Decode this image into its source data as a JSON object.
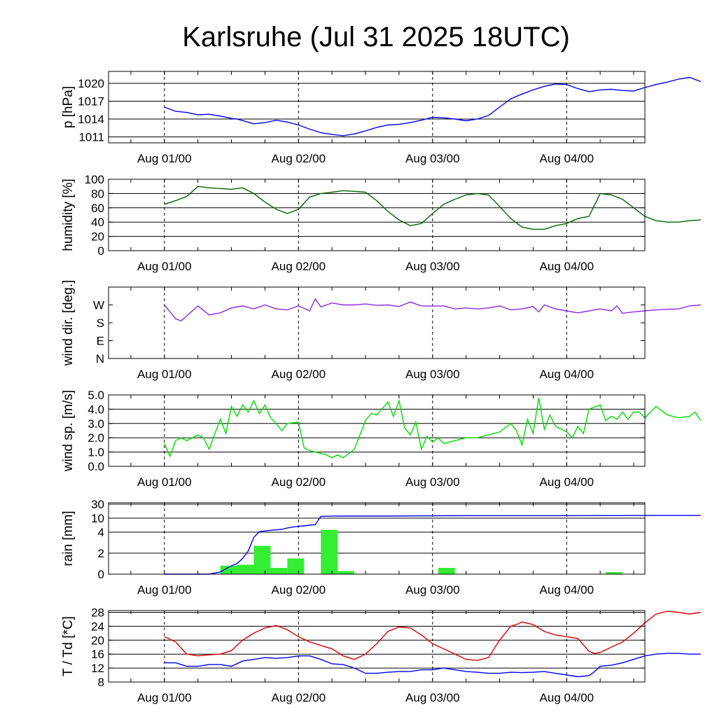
{
  "title": "Karlsruhe (Jul 31 2025 18UTC)",
  "x_ticks": [
    "Aug 01/00",
    "Aug 02/00",
    "Aug 03/00",
    "Aug 04/00"
  ],
  "x_range_hours_note": "",
  "chart_data": [
    {
      "type": "line",
      "ylabel": "p [hPa]",
      "ylim": [
        1010,
        1022
      ],
      "yticks": [
        1011,
        1014,
        1017,
        1020
      ],
      "grid_values": [
        1011,
        1014,
        1017,
        1020
      ],
      "series": [
        {
          "color": "#0000ee",
          "x": [
            0,
            2,
            4,
            6,
            8,
            10,
            12,
            13,
            16,
            18,
            20,
            22,
            24,
            26,
            28,
            30,
            32,
            34,
            36,
            38,
            40,
            42,
            44,
            46,
            48,
            50,
            52,
            54,
            56,
            58,
            60,
            62,
            64,
            66,
            68,
            70,
            72,
            74,
            76,
            78,
            80,
            82,
            84,
            86,
            88,
            90,
            92,
            94,
            96
          ],
          "y": [
            1016,
            1015.3,
            1015.1,
            1014.7,
            1014.8,
            1014.5,
            1014.1,
            1014,
            1013.2,
            1013.4,
            1013.8,
            1013.5,
            1013,
            1012.3,
            1011.7,
            1011.4,
            1011.2,
            1011.5,
            1012,
            1012.6,
            1013,
            1013.1,
            1013.4,
            1013.8,
            1014.3,
            1014.2,
            1014,
            1013.7,
            1014,
            1014.6,
            1016,
            1017.4,
            1018.2,
            1018.9,
            1019.5,
            1019.9,
            1019.8,
            1019.1,
            1018.6,
            1018.9,
            1019,
            1018.8,
            1018.7,
            1019.3,
            1019.8,
            1020.2,
            1020.7,
            1021,
            1020.3
          ]
        }
      ]
    },
    {
      "type": "line",
      "ylabel": "humidity [%]",
      "ylim": [
        0,
        100
      ],
      "yticks": [
        0,
        20,
        40,
        60,
        80,
        100
      ],
      "grid_values": [
        20,
        40,
        60,
        80
      ],
      "series": [
        {
          "color": "#006400",
          "x": [
            0,
            2,
            4,
            6,
            8,
            10,
            12,
            14,
            16,
            18,
            20,
            22,
            24,
            26,
            28,
            30,
            32,
            34,
            36,
            38,
            40,
            42,
            44,
            46,
            48,
            50,
            52,
            54,
            56,
            58,
            60,
            62,
            64,
            66,
            68,
            70,
            72,
            74,
            76,
            78,
            80,
            82,
            84,
            86,
            88,
            90,
            92,
            94,
            96
          ],
          "y": [
            65,
            70,
            76,
            90,
            88,
            87,
            86,
            88,
            80,
            68,
            58,
            52,
            58,
            75,
            80,
            82,
            84,
            83,
            82,
            70,
            55,
            43,
            35,
            38,
            52,
            65,
            72,
            78,
            80,
            78,
            62,
            45,
            33,
            30,
            30,
            35,
            38,
            45,
            48,
            80,
            78,
            72,
            60,
            48,
            42,
            40,
            40,
            42,
            43
          ]
        }
      ]
    },
    {
      "type": "line",
      "ylabel": "wind dir. [deg.]",
      "ylim": [
        0,
        360
      ],
      "ytick_labels": [
        "N",
        "E",
        "S",
        "W"
      ],
      "ytick_values": [
        0,
        90,
        180,
        270
      ],
      "series": [
        {
          "color": "#8a2be2",
          "x": [
            0,
            2,
            3,
            4,
            6,
            8,
            10,
            12,
            14,
            16,
            18,
            20,
            22,
            24,
            26,
            27,
            28,
            30,
            32,
            34,
            36,
            38,
            40,
            42,
            44,
            46,
            48,
            50,
            52,
            54,
            56,
            58,
            60,
            62,
            64,
            66,
            67,
            68,
            70,
            72,
            74,
            76,
            78,
            80,
            81,
            82,
            84,
            86,
            88,
            90,
            92,
            94,
            96
          ],
          "y": [
            270,
            200,
            190,
            215,
            265,
            220,
            230,
            255,
            265,
            250,
            270,
            250,
            245,
            265,
            240,
            300,
            260,
            280,
            270,
            270,
            275,
            268,
            270,
            262,
            285,
            265,
            265,
            265,
            250,
            255,
            250,
            255,
            265,
            245,
            250,
            262,
            235,
            270,
            250,
            240,
            230,
            240,
            250,
            240,
            265,
            228,
            235,
            240,
            245,
            248,
            250,
            265,
            270
          ]
        }
      ]
    },
    {
      "type": "line",
      "ylabel": "wind sp. [m/s]",
      "ylim": [
        0,
        5
      ],
      "yticks": [
        "0.0",
        "1.0",
        "2.0",
        "3.0",
        "4.0",
        "5.0"
      ],
      "ytick_values": [
        0,
        1,
        2,
        3,
        4,
        5
      ],
      "grid_values": [
        1,
        2,
        3,
        4,
        5
      ],
      "series": [
        {
          "color": "#00dd00",
          "x": [
            0,
            1,
            2,
            3,
            4,
            6,
            7,
            8,
            10,
            11,
            12,
            13,
            14,
            15,
            16,
            17,
            18,
            19,
            20,
            21,
            22,
            24,
            25,
            26,
            27,
            28,
            29,
            30,
            31,
            32,
            34,
            36,
            37,
            38,
            40,
            41,
            42,
            43,
            44,
            45,
            46,
            47,
            48,
            49,
            50,
            52,
            54,
            56,
            58,
            60,
            62,
            63,
            64,
            65,
            66,
            67,
            68,
            69,
            70,
            72,
            73,
            74,
            75,
            76,
            78,
            79,
            80,
            81,
            82,
            83,
            84,
            85,
            86,
            88,
            90,
            92,
            94,
            95,
            96
          ],
          "y": [
            1.6,
            0.7,
            1.8,
            2.0,
            1.8,
            2.2,
            2.0,
            1.2,
            3.3,
            2.3,
            4.2,
            3.5,
            4.3,
            3.8,
            4.6,
            3.7,
            4.3,
            3.4,
            3.0,
            2.5,
            3.0,
            3.1,
            1.3,
            1.1,
            1.0,
            0.9,
            0.8,
            0.6,
            0.8,
            0.6,
            1.2,
            3.2,
            3.7,
            3.6,
            4.5,
            3.5,
            4.6,
            2.7,
            2.2,
            3.1,
            1.2,
            2.1,
            1.7,
            2.0,
            1.6,
            1.8,
            2.0,
            2.0,
            2.2,
            2.4,
            3.0,
            2.5,
            1.5,
            3.3,
            2.3,
            4.8,
            2.6,
            3.6,
            2.8,
            2.4,
            2.0,
            2.8,
            2.3,
            4.0,
            4.3,
            3.2,
            3.5,
            3.3,
            3.8,
            3.3,
            3.8,
            3.8,
            3.4,
            4.2,
            3.6,
            3.4,
            3.5,
            3.8,
            3.2
          ]
        }
      ]
    },
    {
      "type": "bar+line",
      "ylabel": "rain [mm]",
      "yticks": [
        "0",
        "2",
        "4",
        "10",
        "30"
      ],
      "ytick_values": [
        0,
        2,
        4,
        10,
        30
      ],
      "grid_values": [
        2,
        4,
        10,
        30
      ],
      "bars": {
        "color": "#33ee33",
        "hour_start": [
          10,
          13,
          16,
          19,
          22,
          28,
          31,
          49,
          79
        ],
        "width_hours": 3,
        "values": [
          0.8,
          0.9,
          2.7,
          0.6,
          1.5,
          5.0,
          0.3,
          0.6,
          0.2
        ]
      },
      "series": [
        {
          "color": "#0000ee",
          "x": [
            0,
            8,
            9,
            10,
            11,
            12,
            13,
            14,
            15,
            16,
            17,
            18,
            19,
            20,
            21,
            22,
            23,
            24,
            25,
            26,
            27,
            28,
            29,
            30,
            32,
            40,
            48,
            50,
            56,
            72,
            80,
            88,
            96
          ],
          "y": [
            0,
            0,
            0.1,
            0.2,
            0.5,
            0.8,
            1.0,
            1.5,
            2.2,
            3.5,
            4.2,
            4.5,
            4.8,
            5.0,
            5.2,
            5.8,
            6.2,
            6.5,
            6.7,
            7.0,
            7.2,
            12.6,
            12.7,
            12.9,
            13.0,
            13.0,
            13.3,
            13.5,
            13.6,
            13.6,
            13.7,
            13.8,
            13.8
          ]
        }
      ]
    },
    {
      "type": "line",
      "ylabel": "T / Td [*C]",
      "ylim": [
        8,
        28.5
      ],
      "yticks": [
        8,
        12,
        16,
        20,
        24,
        28
      ],
      "grid_values": [
        12,
        16,
        20,
        24,
        28
      ],
      "series": [
        {
          "color": "#dd0000",
          "x": [
            0,
            2,
            4,
            6,
            8,
            10,
            12,
            14,
            16,
            18,
            20,
            22,
            24,
            26,
            28,
            30,
            32,
            34,
            36,
            38,
            40,
            42,
            44,
            46,
            48,
            50,
            52,
            54,
            56,
            58,
            60,
            62,
            63,
            64,
            66,
            68,
            70,
            72,
            74,
            76,
            77,
            78,
            80,
            82,
            84,
            86,
            88,
            90,
            92,
            94,
            96
          ],
          "y": [
            21,
            19.5,
            16,
            15.5,
            15.8,
            16,
            17,
            20,
            22,
            23.5,
            24.2,
            23,
            21,
            19.5,
            18.5,
            17.5,
            15.5,
            14.5,
            16,
            19,
            22.5,
            23.8,
            23.5,
            21.5,
            19,
            17.5,
            16,
            14.5,
            14.2,
            15,
            20,
            24,
            24.5,
            25.2,
            24.5,
            22.5,
            21.5,
            21,
            20.5,
            16.8,
            16.2,
            16.5,
            18,
            19.5,
            22,
            25,
            27.5,
            28.3,
            28,
            27.5,
            28
          ]
        }
      ]
    },
    {
      "type": "line_td",
      "series": [
        {
          "color": "#0000ee",
          "x": [
            0,
            2,
            4,
            6,
            8,
            10,
            12,
            14,
            16,
            18,
            20,
            22,
            24,
            26,
            28,
            30,
            32,
            34,
            36,
            38,
            40,
            42,
            44,
            46,
            48,
            50,
            52,
            54,
            56,
            58,
            60,
            62,
            64,
            66,
            68,
            70,
            72,
            74,
            76,
            77,
            78,
            80,
            82,
            84,
            86,
            88,
            90,
            92,
            94,
            96
          ],
          "y": [
            13.5,
            13.5,
            12.5,
            12.5,
            13,
            13,
            12.5,
            14,
            14.5,
            15,
            14.8,
            15,
            15.5,
            15.5,
            14.5,
            13.2,
            13,
            12,
            10.5,
            10.5,
            10.8,
            11,
            11,
            11.5,
            11.5,
            12,
            11.5,
            11,
            10.8,
            10.5,
            10.5,
            10.8,
            10.7,
            10.8,
            11,
            10.5,
            10,
            9.5,
            9.8,
            11,
            12.5,
            12.8,
            13.5,
            14.5,
            15.5,
            16,
            16.2,
            16.2,
            16,
            16
          ]
        }
      ]
    }
  ]
}
